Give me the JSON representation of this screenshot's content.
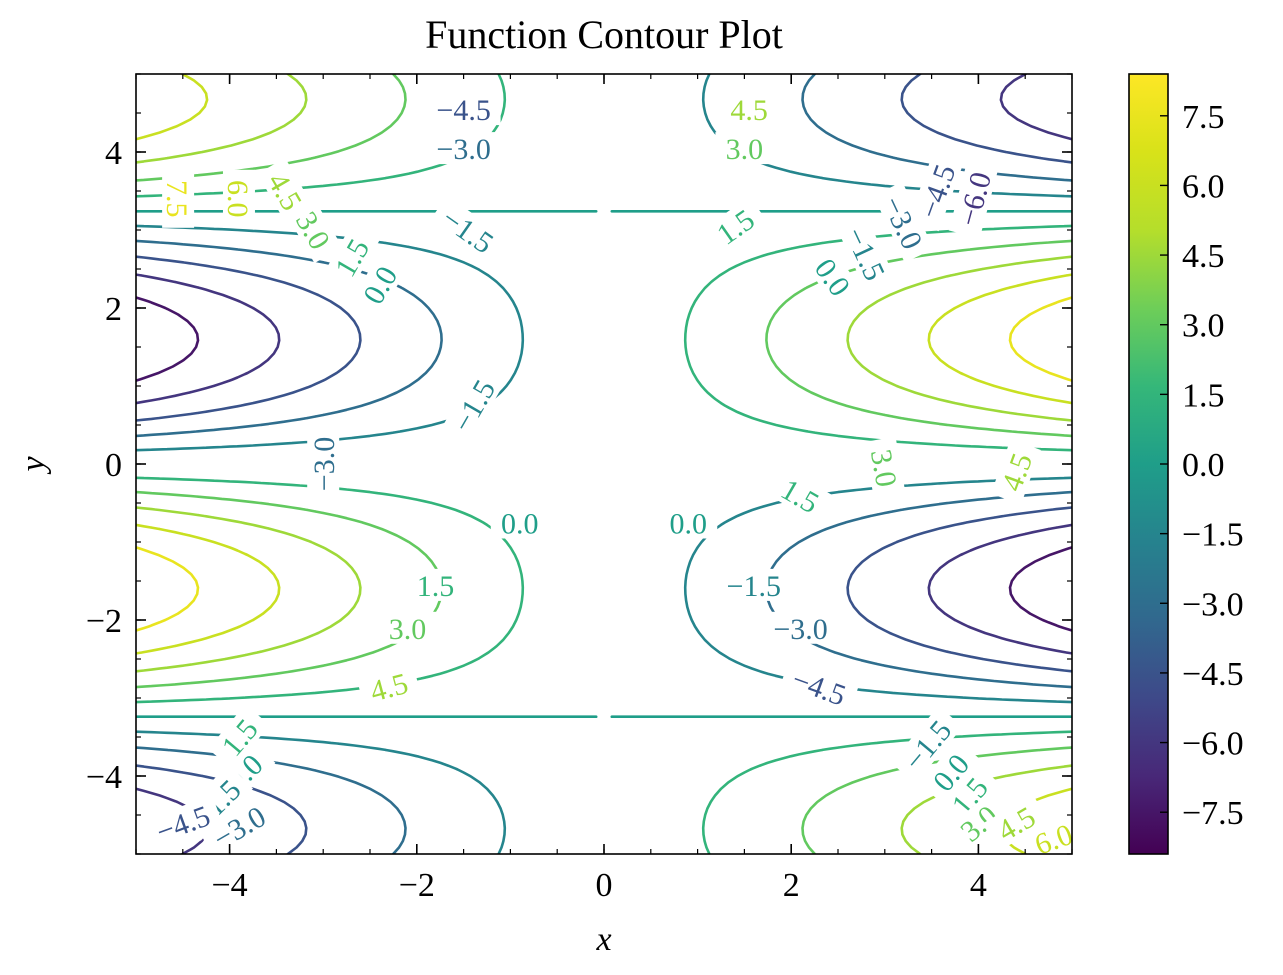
{
  "chart_data": {
    "type": "contour",
    "title": "Function Contour Plot",
    "xlabel": "x",
    "ylabel": "y",
    "xlim": [
      -5,
      5
    ],
    "ylim": [
      -5,
      5
    ],
    "x_ticks": [
      -4,
      -2,
      0,
      2,
      4
    ],
    "x_tick_labels": [
      "−4",
      "−2",
      "0",
      "2",
      "4"
    ],
    "y_ticks": [
      -4,
      -2,
      0,
      2,
      4
    ],
    "y_tick_labels": [
      "−4",
      "−2",
      "0",
      "2",
      "4"
    ],
    "colormap": "viridis",
    "colorbar_range": [
      -8.4,
      8.4
    ],
    "colorbar_ticks": [
      7.5,
      6.0,
      4.5,
      3.0,
      1.5,
      0.0,
      -1.5,
      -3.0,
      -4.5,
      -6.0,
      -7.5
    ],
    "colorbar_tick_labels": [
      "7.5",
      "6.0",
      "4.5",
      "3.0",
      "1.5",
      "0.0",
      "−1.5",
      "−3.0",
      "−4.5",
      "−6.0",
      "−7.5"
    ],
    "levels": [
      -7.5,
      -6.0,
      -4.5,
      -3.0,
      -1.5,
      0.0,
      1.5,
      3.0,
      4.5,
      6.0,
      7.5
    ],
    "grid": false,
    "line_labels": [
      {
        "text": "−4.5",
        "x": -1.5,
        "y": 4.55,
        "level": -4.5,
        "rot": 0
      },
      {
        "text": "−3.0",
        "x": -1.5,
        "y": 4.05,
        "level": -3.0,
        "rot": 0
      },
      {
        "text": "−1.5",
        "x": -1.45,
        "y": 3.0,
        "level": -1.5,
        "rot": 35
      },
      {
        "text": "4.5",
        "x": 1.55,
        "y": 4.55,
        "level": 4.5,
        "rot": 0
      },
      {
        "text": "3.0",
        "x": 1.5,
        "y": 4.05,
        "level": 3.0,
        "rot": 0
      },
      {
        "text": "1.5",
        "x": 1.4,
        "y": 3.05,
        "level": 1.5,
        "rot": -35
      },
      {
        "text": "7.5",
        "x": -4.55,
        "y": 3.4,
        "level": 7.5,
        "rot": 90
      },
      {
        "text": "6.0",
        "x": -3.9,
        "y": 3.4,
        "level": 6.0,
        "rot": 90
      },
      {
        "text": "4.5",
        "x": -3.4,
        "y": 3.5,
        "level": 4.5,
        "rot": 60
      },
      {
        "text": "3.0",
        "x": -3.1,
        "y": 3.0,
        "level": 3.0,
        "rot": 60
      },
      {
        "text": "1.5",
        "x": -2.7,
        "y": 2.65,
        "level": 1.5,
        "rot": -60
      },
      {
        "text": "0.0",
        "x": -2.4,
        "y": 2.3,
        "level": 0.0,
        "rot": -60
      },
      {
        "text": "−6.0",
        "x": 3.95,
        "y": 3.4,
        "level": -6.0,
        "rot": -75
      },
      {
        "text": "−4.5",
        "x": 3.55,
        "y": 3.5,
        "level": -4.5,
        "rot": -70
      },
      {
        "text": "−3.0",
        "x": 3.2,
        "y": 3.1,
        "level": -3.0,
        "rot": 65
      },
      {
        "text": "−1.5",
        "x": 2.8,
        "y": 2.7,
        "level": -1.5,
        "rot": 65
      },
      {
        "text": "0.0",
        "x": 2.45,
        "y": 2.4,
        "level": 0.0,
        "rot": 55
      },
      {
        "text": "−1.5",
        "x": -1.4,
        "y": 0.75,
        "level": -1.5,
        "rot": -60
      },
      {
        "text": "−3.0",
        "x": -3.0,
        "y": 0.0,
        "level": -3.0,
        "rot": -90
      },
      {
        "text": "3.0",
        "x": 3.0,
        "y": -0.05,
        "level": 3.0,
        "rot": 80
      },
      {
        "text": "4.5",
        "x": 4.4,
        "y": -0.1,
        "level": 4.5,
        "rot": -70
      },
      {
        "text": "1.5",
        "x": 2.1,
        "y": -0.4,
        "level": 1.5,
        "rot": 30
      },
      {
        "text": "0.0",
        "x": -0.9,
        "y": -0.75,
        "level": 0.0,
        "rot": 0
      },
      {
        "text": "0.0",
        "x": 0.9,
        "y": -0.75,
        "level": 0.0,
        "rot": 0
      },
      {
        "text": "1.5",
        "x": -1.8,
        "y": -1.55,
        "level": 1.5,
        "rot": 0
      },
      {
        "text": "−1.5",
        "x": 1.6,
        "y": -1.55,
        "level": -1.5,
        "rot": 0
      },
      {
        "text": "3.0",
        "x": -2.1,
        "y": -2.1,
        "level": 3.0,
        "rot": 0
      },
      {
        "text": "−3.0",
        "x": 2.1,
        "y": -2.1,
        "level": -3.0,
        "rot": 0
      },
      {
        "text": "4.5",
        "x": -2.3,
        "y": -2.85,
        "level": 4.5,
        "rot": -15
      },
      {
        "text": "−4.5",
        "x": 2.3,
        "y": -2.85,
        "level": -4.5,
        "rot": 20
      },
      {
        "text": "1.5",
        "x": -3.9,
        "y": -3.5,
        "level": 1.5,
        "rot": -50
      },
      {
        "text": "0.0",
        "x": -3.85,
        "y": -3.95,
        "level": 0.0,
        "rot": -45
      },
      {
        "text": "−1.5",
        "x": -4.15,
        "y": -4.35,
        "level": -1.5,
        "rot": -45
      },
      {
        "text": "−3.0",
        "x": -3.9,
        "y": -4.65,
        "level": -3.0,
        "rot": -30
      },
      {
        "text": "−4.5",
        "x": -4.5,
        "y": -4.6,
        "level": -4.5,
        "rot": -20
      },
      {
        "text": "−1.5",
        "x": 3.45,
        "y": -3.6,
        "level": -1.5,
        "rot": -50
      },
      {
        "text": "0.0",
        "x": 3.7,
        "y": -3.95,
        "level": 0.0,
        "rot": -50
      },
      {
        "text": "1.5",
        "x": 3.9,
        "y": -4.25,
        "level": 1.5,
        "rot": -50
      },
      {
        "text": "3.0",
        "x": 4.0,
        "y": -4.6,
        "level": 3.0,
        "rot": -40
      },
      {
        "text": "4.5",
        "x": 4.4,
        "y": -4.6,
        "level": 4.5,
        "rot": -30
      },
      {
        "text": "6.0",
        "x": 4.8,
        "y": -4.8,
        "level": 6.0,
        "rot": -20
      }
    ]
  }
}
